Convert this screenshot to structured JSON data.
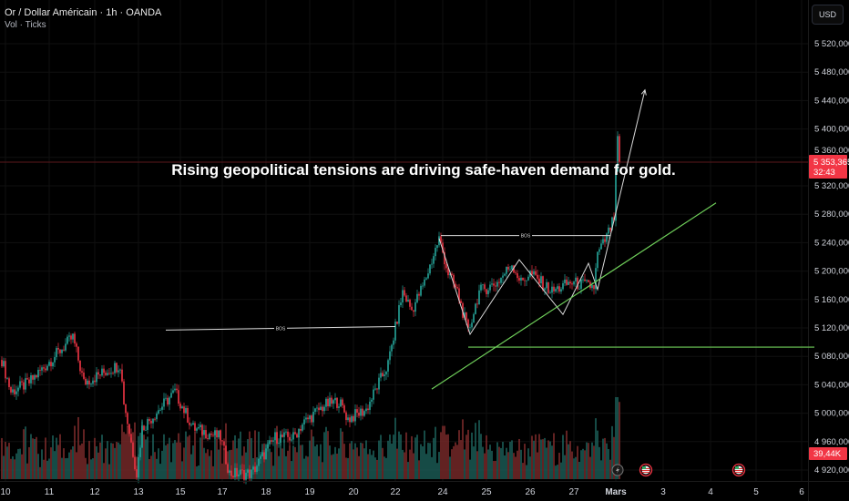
{
  "header": {
    "title": "Or / Dollar Américain · 1h · OANDA",
    "volume_label": "Vol · Ticks",
    "currency_button": "USD"
  },
  "colors": {
    "up": "#26a69a",
    "down": "#f23645",
    "volume_up": "#1c5e58",
    "volume_down": "#7a2a2a",
    "trendline": "#6fcf5a",
    "annotation": "#d9d9d9",
    "price_line": "#7a1f25",
    "background": "#000000"
  },
  "chart_data": {
    "type": "candlestick",
    "symbol": "XAUUSD",
    "interval": "1h",
    "ylim": [
      4900,
      5560
    ],
    "y_ticks": [
      5520,
      5480,
      5440,
      5400,
      5360,
      5320,
      5280,
      5240,
      5200,
      5160,
      5120,
      5080,
      5040,
      5000,
      4960,
      4920
    ],
    "y_tick_labels": [
      "5 520,000",
      "5 480,000",
      "5 440,000",
      "5 400,000",
      "5 360,000",
      "5 320,000",
      "5 280,000",
      "5 240,000",
      "5 200,000",
      "5 160,000",
      "5 120,000",
      "5 080,000",
      "5 040,000",
      "5 000,000",
      "4 960,000",
      "4 920,000"
    ],
    "x_ticks": [
      {
        "hour": 2,
        "label": "10"
      },
      {
        "hour": 26,
        "label": "11"
      },
      {
        "hour": 51,
        "label": "12"
      },
      {
        "hour": 75,
        "label": "13"
      },
      {
        "hour": 98,
        "label": "15"
      },
      {
        "hour": 121,
        "label": "17"
      },
      {
        "hour": 145,
        "label": "18"
      },
      {
        "hour": 169,
        "label": "19"
      },
      {
        "hour": 193,
        "label": "20"
      },
      {
        "hour": 216,
        "label": "22"
      },
      {
        "hour": 242,
        "label": "24"
      },
      {
        "hour": 266,
        "label": "25"
      },
      {
        "hour": 290,
        "label": "26"
      },
      {
        "hour": 314,
        "label": "27"
      },
      {
        "hour": 337,
        "label": "Mars"
      },
      {
        "hour": 363,
        "label": "3"
      },
      {
        "hour": 389,
        "label": "4"
      },
      {
        "hour": 414,
        "label": "5"
      },
      {
        "hour": 439,
        "label": "6"
      }
    ],
    "price_path": [
      [
        0,
        5075
      ],
      [
        5,
        5030
      ],
      [
        15,
        5043
      ],
      [
        39,
        5107
      ],
      [
        45,
        5043
      ],
      [
        65,
        5069
      ],
      [
        67,
        5017
      ],
      [
        74,
        4915
      ],
      [
        77,
        4979
      ],
      [
        95,
        5030
      ],
      [
        105,
        4979
      ],
      [
        120,
        4966
      ],
      [
        125,
        4915
      ],
      [
        137,
        4915
      ],
      [
        150,
        4966
      ],
      [
        160,
        4966
      ],
      [
        165,
        4985
      ],
      [
        177,
        5011
      ],
      [
        185,
        5017
      ],
      [
        190,
        4992
      ],
      [
        200,
        5005
      ],
      [
        207,
        5043
      ],
      [
        212,
        5069
      ],
      [
        216,
        5120
      ],
      [
        220,
        5171
      ],
      [
        225,
        5145
      ],
      [
        232,
        5184
      ],
      [
        240,
        5246
      ],
      [
        245,
        5197
      ],
      [
        250,
        5171
      ],
      [
        256,
        5114
      ],
      [
        262,
        5171
      ],
      [
        272,
        5184
      ],
      [
        280,
        5210
      ],
      [
        285,
        5184
      ],
      [
        290,
        5197
      ],
      [
        302,
        5171
      ],
      [
        312,
        5184
      ],
      [
        325,
        5178
      ],
      [
        327,
        5223
      ],
      [
        332,
        5248
      ],
      [
        336,
        5274
      ],
      [
        338,
        5389
      ],
      [
        339,
        5353
      ]
    ],
    "last_bar": 339,
    "current_price": 5353.365,
    "current_price_label": "5 353,365",
    "countdown": "32:43",
    "volume_last_label": "39,44K",
    "annotations": {
      "text": "Rising geopolitical tensions are driving safe-haven demand for gold.",
      "bos_labels": [
        "BOS",
        "BOS"
      ],
      "bos_levels": [
        {
          "from_hour": 90,
          "to_hour": 216,
          "price_start": 5117,
          "price_end": 5122
        },
        {
          "from_hour": 241,
          "to_hour": 334,
          "price_start": 5250,
          "price_end": 5250
        }
      ],
      "zigzag": [
        [
          240,
          5246
        ],
        [
          257,
          5111
        ],
        [
          284,
          5216
        ],
        [
          308,
          5139
        ],
        [
          322,
          5211
        ],
        [
          327,
          5174
        ],
        [
          353,
          5455
        ]
      ],
      "support_level": {
        "from_hour": 256,
        "to_hour": 446,
        "price": 5093
      },
      "trendline": [
        [
          236,
          5034
        ],
        [
          392,
          5296
        ]
      ]
    },
    "events": [
      "lightning",
      "us-flag",
      "us-flag"
    ]
  }
}
